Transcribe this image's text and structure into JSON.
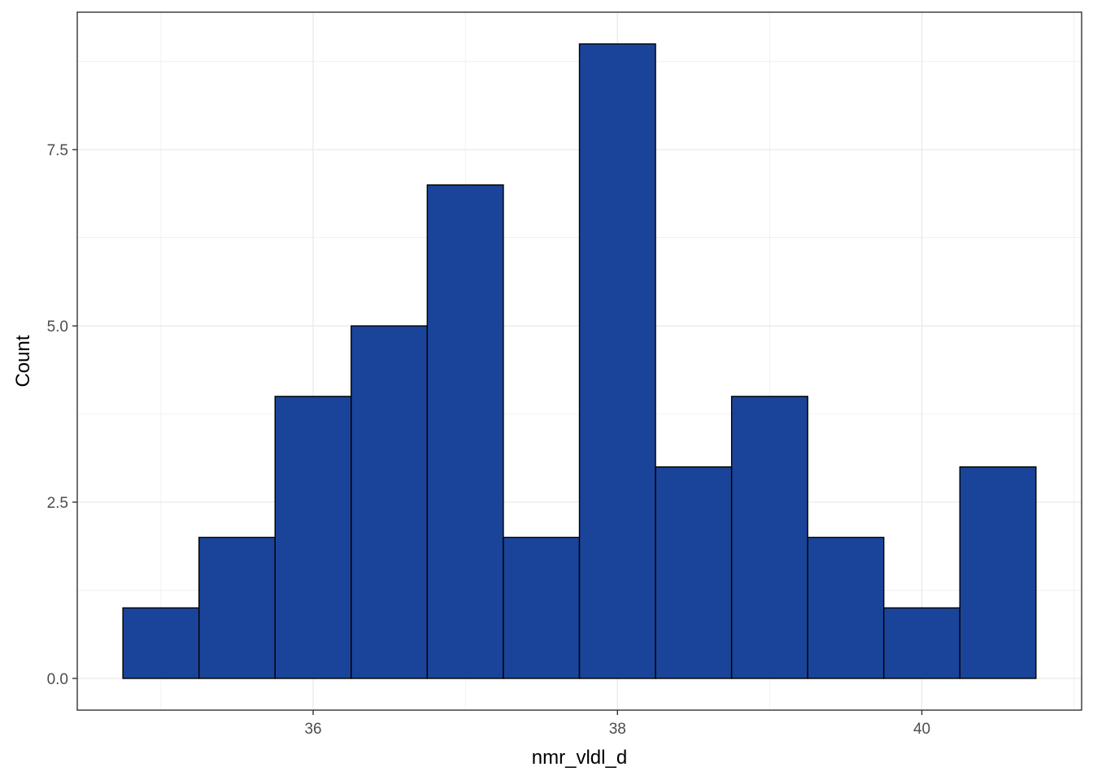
{
  "chart_data": {
    "type": "histogram",
    "xlabel": "nmr_vldl_d",
    "ylabel": "Count",
    "bin_width": 0.5,
    "bins": [
      {
        "x_start": 34.75,
        "x_end": 35.25,
        "count": 1
      },
      {
        "x_start": 35.25,
        "x_end": 35.75,
        "count": 2
      },
      {
        "x_start": 35.75,
        "x_end": 36.25,
        "count": 4
      },
      {
        "x_start": 36.25,
        "x_end": 36.75,
        "count": 5
      },
      {
        "x_start": 36.75,
        "x_end": 37.25,
        "count": 7
      },
      {
        "x_start": 37.25,
        "x_end": 37.75,
        "count": 2
      },
      {
        "x_start": 37.75,
        "x_end": 38.25,
        "count": 9
      },
      {
        "x_start": 38.25,
        "x_end": 38.75,
        "count": 3
      },
      {
        "x_start": 38.75,
        "x_end": 39.25,
        "count": 4
      },
      {
        "x_start": 39.25,
        "x_end": 39.75,
        "count": 2
      },
      {
        "x_start": 39.75,
        "x_end": 40.25,
        "count": 1
      },
      {
        "x_start": 40.25,
        "x_end": 40.75,
        "count": 3
      }
    ],
    "xlim": [
      34.45,
      41.05
    ],
    "ylim": [
      -0.45,
      9.45
    ],
    "x_ticks": [
      36,
      38,
      40
    ],
    "x_tick_labels": [
      "36",
      "38",
      "40"
    ],
    "y_ticks": [
      0,
      2.5,
      5,
      7.5
    ],
    "y_tick_labels": [
      "0.0",
      "2.5",
      "5.0",
      "7.5"
    ],
    "grid": true,
    "bar_fill": "#1a4499",
    "bar_stroke": "#000000",
    "grid_color": "#ebebeb",
    "panel_border_color": "#333333"
  }
}
